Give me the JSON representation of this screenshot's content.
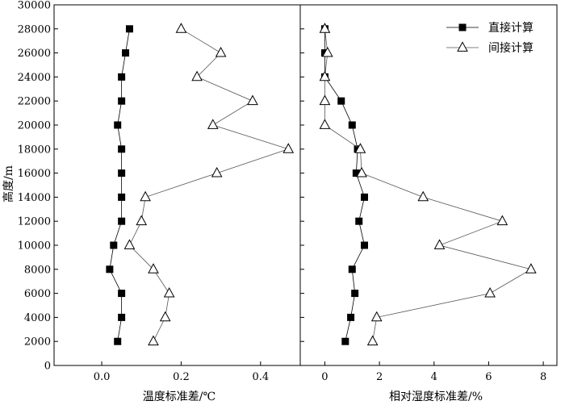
{
  "chart_data": {
    "type": "line",
    "y_axis": {
      "label": "高度/m",
      "range": [
        0,
        30000
      ],
      "ticks": [
        0,
        2000,
        4000,
        6000,
        8000,
        10000,
        12000,
        14000,
        16000,
        18000,
        20000,
        22000,
        24000,
        26000,
        28000,
        30000
      ]
    },
    "legend": {
      "position": "top-right"
    },
    "series_styles": {
      "直接计算": {
        "marker": "filled-square",
        "color": "#000000"
      },
      "间接计算": {
        "marker": "open-triangle",
        "color": "#000000"
      }
    },
    "panels": [
      {
        "id": "left",
        "x_axis": {
          "label": "温度标准差/℃",
          "range": [
            -0.12,
            0.5
          ],
          "ticks": [
            0.0,
            0.2,
            0.4
          ],
          "tick_labels": [
            "0.0",
            "0.2",
            "0.4"
          ]
        },
        "series": [
          {
            "name": "直接计算",
            "points": [
              [
                0.04,
                2000
              ],
              [
                0.05,
                4000
              ],
              [
                0.05,
                6000
              ],
              [
                0.02,
                8000
              ],
              [
                0.03,
                10000
              ],
              [
                0.05,
                12000
              ],
              [
                0.05,
                14000
              ],
              [
                0.05,
                16000
              ],
              [
                0.05,
                18000
              ],
              [
                0.04,
                20000
              ],
              [
                0.05,
                22000
              ],
              [
                0.05,
                24000
              ],
              [
                0.06,
                26000
              ],
              [
                0.07,
                28000
              ]
            ]
          },
          {
            "name": "间接计算",
            "points": [
              [
                0.13,
                2000
              ],
              [
                0.16,
                4000
              ],
              [
                0.17,
                6000
              ],
              [
                0.13,
                8000
              ],
              [
                0.07,
                10000
              ],
              [
                0.1,
                12000
              ],
              [
                0.11,
                14000
              ],
              [
                0.29,
                16000
              ],
              [
                0.47,
                18000
              ],
              [
                0.28,
                20000
              ],
              [
                0.38,
                22000
              ],
              [
                0.24,
                24000
              ],
              [
                0.3,
                26000
              ],
              [
                0.2,
                28000
              ]
            ]
          }
        ]
      },
      {
        "id": "right",
        "x_axis": {
          "label": "相对湿度标准差/%",
          "range": [
            -0.9,
            8.5
          ],
          "ticks": [
            0,
            2,
            4,
            6,
            8
          ],
          "tick_labels": [
            "0",
            "2",
            "4",
            "6",
            "8"
          ]
        },
        "series": [
          {
            "name": "直接计算",
            "points": [
              [
                0.75,
                2000
              ],
              [
                0.95,
                4000
              ],
              [
                1.1,
                6000
              ],
              [
                1.0,
                8000
              ],
              [
                1.45,
                10000
              ],
              [
                1.25,
                12000
              ],
              [
                1.45,
                14000
              ],
              [
                1.15,
                16000
              ],
              [
                1.2,
                18000
              ],
              [
                1.0,
                20000
              ],
              [
                0.6,
                22000
              ],
              [
                0.0,
                24000
              ],
              [
                0.0,
                26000
              ],
              [
                0.0,
                28000
              ]
            ]
          },
          {
            "name": "间接计算",
            "points": [
              [
                1.75,
                2000
              ],
              [
                1.9,
                4000
              ],
              [
                6.05,
                6000
              ],
              [
                7.55,
                8000
              ],
              [
                4.2,
                10000
              ],
              [
                6.5,
                12000
              ],
              [
                3.6,
                14000
              ],
              [
                1.35,
                16000
              ],
              [
                1.3,
                18000
              ],
              [
                0.0,
                20000
              ],
              [
                0.0,
                22000
              ],
              [
                0.0,
                24000
              ],
              [
                0.1,
                26000
              ],
              [
                0.0,
                28000
              ]
            ]
          }
        ]
      }
    ]
  }
}
